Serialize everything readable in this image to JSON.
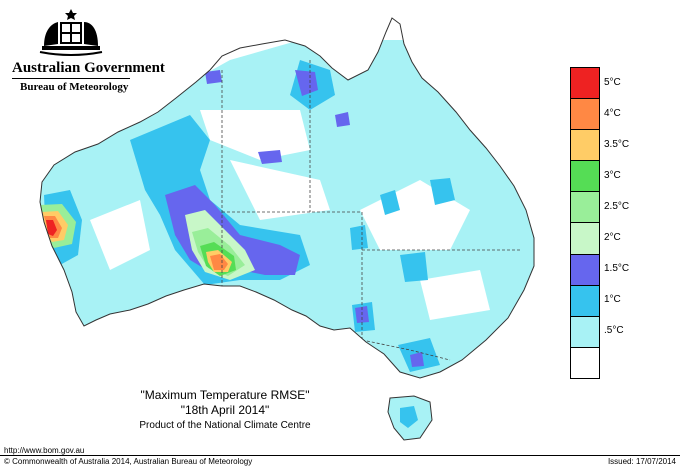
{
  "header": {
    "government": "Australian Government",
    "bureau": "Bureau of Meteorology"
  },
  "map": {
    "title": "\"Maximum Temperature RMSE\"",
    "date": "\"18th  April 2014\"",
    "credit": "Product of the National Climate Centre",
    "colors": {
      "land_low": "#ffffff",
      "band_05": "#a8f2f5",
      "band_1": "#36c3ee",
      "band_15": "#6666ee",
      "band_2": "#c8f7c8",
      "band_25": "#99ee99",
      "band_3": "#55dd55",
      "band_35": "#ffcc66",
      "band_4": "#ff8844",
      "band_5": "#ee2222",
      "outline": "#333333"
    }
  },
  "legend": {
    "items": [
      {
        "label": "5°C",
        "color": "#ee2222"
      },
      {
        "label": "4°C",
        "color": "#ff8844"
      },
      {
        "label": "3.5°C",
        "color": "#ffcc66"
      },
      {
        "label": "3°C",
        "color": "#55dd55"
      },
      {
        "label": "2.5°C",
        "color": "#99ee99"
      },
      {
        "label": "2°C",
        "color": "#c8f7c8"
      },
      {
        "label": "1.5°C",
        "color": "#6666ee"
      },
      {
        "label": "1°C",
        "color": "#36c3ee"
      },
      {
        "label": ".5°C",
        "color": "#a8f2f5"
      },
      {
        "label": "",
        "color": "#ffffff"
      }
    ]
  },
  "footer": {
    "url": "http://www.bom.gov.au",
    "copyright": "© Commonwealth of Australia 2014, Australian Bureau of Meteorology",
    "issued": "Issued: 17/07/2014"
  }
}
